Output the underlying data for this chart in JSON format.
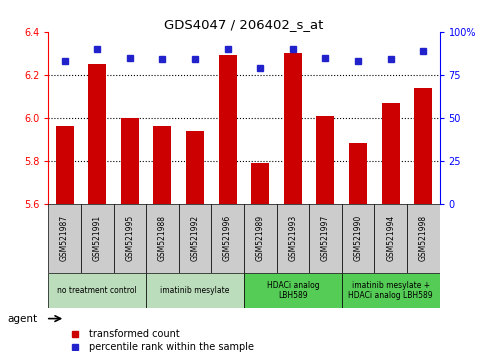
{
  "title": "GDS4047 / 206402_s_at",
  "samples": [
    "GSM521987",
    "GSM521991",
    "GSM521995",
    "GSM521988",
    "GSM521992",
    "GSM521996",
    "GSM521989",
    "GSM521993",
    "GSM521997",
    "GSM521990",
    "GSM521994",
    "GSM521998"
  ],
  "bar_values": [
    5.96,
    6.25,
    6.0,
    5.96,
    5.94,
    6.29,
    5.79,
    6.3,
    6.01,
    5.88,
    6.07,
    6.14
  ],
  "dot_values": [
    83,
    90,
    85,
    84,
    84,
    90,
    79,
    90,
    85,
    83,
    84,
    89
  ],
  "ylim_left": [
    5.6,
    6.4
  ],
  "ylim_right": [
    0,
    100
  ],
  "yticks_left": [
    5.6,
    5.8,
    6.0,
    6.2,
    6.4
  ],
  "yticks_right": [
    0,
    25,
    50,
    75,
    100
  ],
  "ytick_labels_right": [
    "0",
    "25",
    "50",
    "75",
    "100%"
  ],
  "bar_color": "#cc0000",
  "dot_color": "#2222cc",
  "group_info": [
    {
      "label": "no treatment control",
      "cols": [
        0,
        1,
        2
      ],
      "color": "#bbddbb"
    },
    {
      "label": "imatinib mesylate",
      "cols": [
        3,
        4,
        5
      ],
      "color": "#bbddbb"
    },
    {
      "label": "HDACi analog\nLBH589",
      "cols": [
        6,
        7,
        8
      ],
      "color": "#55cc55"
    },
    {
      "label": "imatinib mesylate +\nHDACi analog LBH589",
      "cols": [
        9,
        10,
        11
      ],
      "color": "#55cc55"
    }
  ],
  "legend_bar_label": "transformed count",
  "legend_dot_label": "percentile rank within the sample",
  "agent_label": "agent",
  "background_color": "#ffffff",
  "sample_label_bg": "#cccccc",
  "title_fontsize": 9.5,
  "tick_fontsize": 7,
  "sample_fontsize": 5.5,
  "group_fontsize": 5.5,
  "legend_fontsize": 7
}
